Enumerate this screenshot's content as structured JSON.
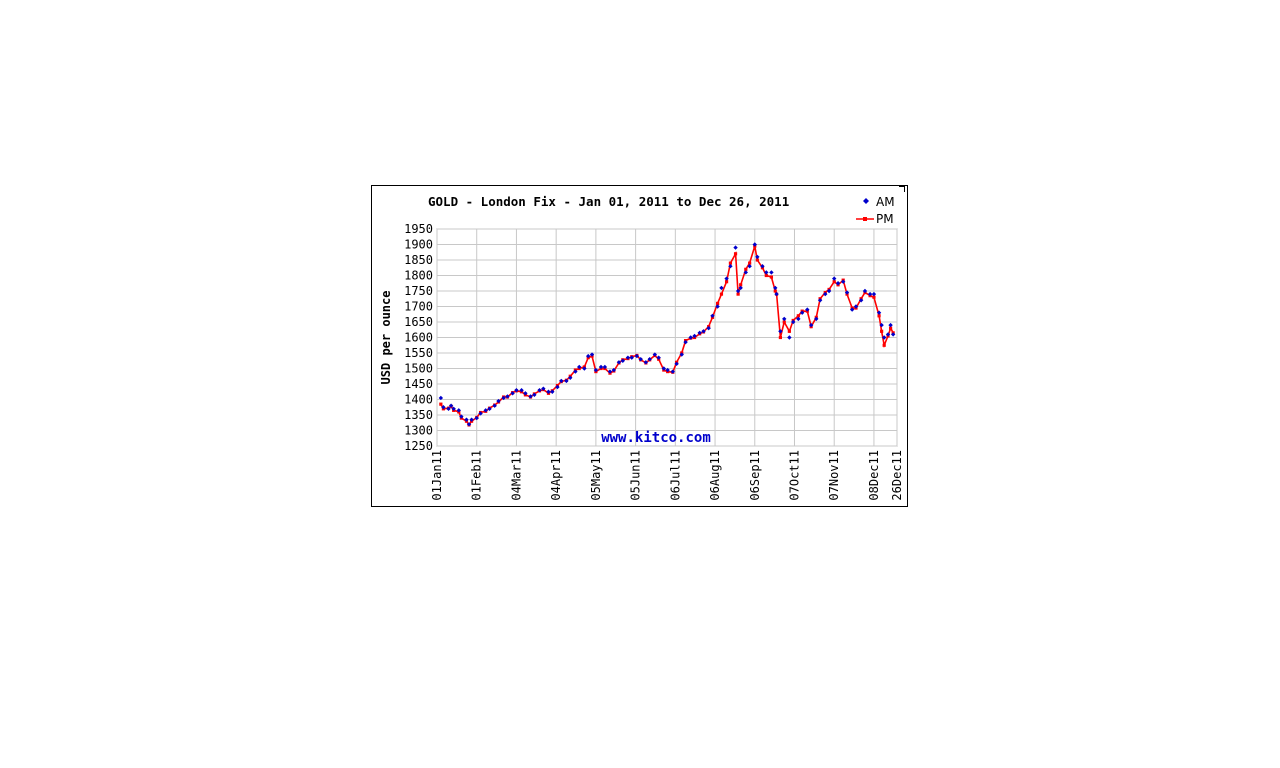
{
  "chart_data": {
    "type": "line",
    "title": "GOLD - London Fix - Jan 01, 2011 to Dec 26, 2011",
    "xlabel": "",
    "ylabel": "USD per ounce",
    "watermark": "www.kitco.com",
    "x_range": [
      "2011-01-01",
      "2011-12-26"
    ],
    "ylim": [
      1250,
      1950
    ],
    "y_ticks": [
      1250,
      1300,
      1350,
      1400,
      1450,
      1500,
      1550,
      1600,
      1650,
      1700,
      1750,
      1800,
      1850,
      1900,
      1950
    ],
    "x_tick_labels": [
      {
        "date": "2011-01-01",
        "label": "01Jan11"
      },
      {
        "date": "2011-02-01",
        "label": "01Feb11"
      },
      {
        "date": "2011-03-04",
        "label": "04Mar11"
      },
      {
        "date": "2011-04-04",
        "label": "04Apr11"
      },
      {
        "date": "2011-05-05",
        "label": "05May11"
      },
      {
        "date": "2011-06-05",
        "label": "05Jun11"
      },
      {
        "date": "2011-07-06",
        "label": "06Jul11"
      },
      {
        "date": "2011-08-06",
        "label": "06Aug11"
      },
      {
        "date": "2011-09-06",
        "label": "06Sep11"
      },
      {
        "date": "2011-10-07",
        "label": "07Oct11"
      },
      {
        "date": "2011-11-07",
        "label": "07Nov11"
      },
      {
        "date": "2011-12-08",
        "label": "08Dec11"
      },
      {
        "date": "2011-12-26",
        "label": "26Dec11"
      }
    ],
    "grid": true,
    "legend_position": "top-right",
    "series": [
      {
        "name": "AM",
        "color": "#0000cc",
        "marker": "diamond",
        "x": [
          "2011-01-04",
          "2011-01-06",
          "2011-01-10",
          "2011-01-12",
          "2011-01-14",
          "2011-01-18",
          "2011-01-20",
          "2011-01-24",
          "2011-01-26",
          "2011-01-28",
          "2011-02-01",
          "2011-02-04",
          "2011-02-08",
          "2011-02-11",
          "2011-02-15",
          "2011-02-18",
          "2011-02-22",
          "2011-02-25",
          "2011-03-01",
          "2011-03-04",
          "2011-03-08",
          "2011-03-11",
          "2011-03-15",
          "2011-03-18",
          "2011-03-22",
          "2011-03-25",
          "2011-03-29",
          "2011-04-01",
          "2011-04-05",
          "2011-04-08",
          "2011-04-12",
          "2011-04-15",
          "2011-04-19",
          "2011-04-22",
          "2011-04-26",
          "2011-04-29",
          "2011-05-02",
          "2011-05-05",
          "2011-05-09",
          "2011-05-12",
          "2011-05-16",
          "2011-05-19",
          "2011-05-23",
          "2011-05-26",
          "2011-05-30",
          "2011-06-02",
          "2011-06-06",
          "2011-06-09",
          "2011-06-13",
          "2011-06-16",
          "2011-06-20",
          "2011-06-23",
          "2011-06-27",
          "2011-06-30",
          "2011-07-04",
          "2011-07-07",
          "2011-07-11",
          "2011-07-14",
          "2011-07-18",
          "2011-07-21",
          "2011-07-25",
          "2011-07-28",
          "2011-08-01",
          "2011-08-04",
          "2011-08-08",
          "2011-08-11",
          "2011-08-15",
          "2011-08-18",
          "2011-08-22",
          "2011-08-24",
          "2011-08-26",
          "2011-08-30",
          "2011-09-02",
          "2011-09-06",
          "2011-09-08",
          "2011-09-12",
          "2011-09-15",
          "2011-09-19",
          "2011-09-22",
          "2011-09-23",
          "2011-09-26",
          "2011-09-29",
          "2011-10-03",
          "2011-10-06",
          "2011-10-10",
          "2011-10-13",
          "2011-10-17",
          "2011-10-20",
          "2011-10-24",
          "2011-10-27",
          "2011-10-31",
          "2011-11-03",
          "2011-11-07",
          "2011-11-10",
          "2011-11-14",
          "2011-11-17",
          "2011-11-21",
          "2011-11-24",
          "2011-11-28",
          "2011-12-01",
          "2011-12-05",
          "2011-12-08",
          "2011-12-12",
          "2011-12-14",
          "2011-12-16",
          "2011-12-19",
          "2011-12-21",
          "2011-12-23"
        ],
        "values": [
          1405,
          1375,
          1370,
          1380,
          1370,
          1365,
          1345,
          1335,
          1320,
          1335,
          1340,
          1355,
          1365,
          1370,
          1380,
          1395,
          1405,
          1410,
          1420,
          1430,
          1430,
          1420,
          1410,
          1415,
          1430,
          1435,
          1425,
          1425,
          1440,
          1460,
          1460,
          1470,
          1490,
          1505,
          1500,
          1540,
          1545,
          1495,
          1505,
          1505,
          1490,
          1495,
          1520,
          1525,
          1535,
          1535,
          1540,
          1530,
          1520,
          1530,
          1545,
          1535,
          1500,
          1495,
          1490,
          1515,
          1545,
          1585,
          1600,
          1605,
          1615,
          1620,
          1630,
          1670,
          1700,
          1760,
          1790,
          1830,
          1890,
          1750,
          1760,
          1810,
          1830,
          1900,
          1860,
          1830,
          1810,
          1810,
          1760,
          1740,
          1620,
          1660,
          1600,
          1650,
          1660,
          1680,
          1690,
          1640,
          1660,
          1720,
          1740,
          1750,
          1790,
          1775,
          1780,
          1745,
          1690,
          1700,
          1720,
          1750,
          1740,
          1740,
          1680,
          1640,
          1600,
          1610,
          1640,
          1610
        ]
      },
      {
        "name": "PM",
        "color": "#ff0000",
        "marker": "square",
        "x": [
          "2011-01-04",
          "2011-01-06",
          "2011-01-10",
          "2011-01-12",
          "2011-01-14",
          "2011-01-18",
          "2011-01-20",
          "2011-01-24",
          "2011-01-26",
          "2011-01-28",
          "2011-02-01",
          "2011-02-04",
          "2011-02-08",
          "2011-02-11",
          "2011-02-15",
          "2011-02-18",
          "2011-02-22",
          "2011-02-25",
          "2011-03-01",
          "2011-03-04",
          "2011-03-08",
          "2011-03-11",
          "2011-03-15",
          "2011-03-18",
          "2011-03-22",
          "2011-03-25",
          "2011-03-29",
          "2011-04-01",
          "2011-04-05",
          "2011-04-08",
          "2011-04-12",
          "2011-04-15",
          "2011-04-19",
          "2011-04-22",
          "2011-04-26",
          "2011-04-29",
          "2011-05-02",
          "2011-05-05",
          "2011-05-09",
          "2011-05-12",
          "2011-05-16",
          "2011-05-19",
          "2011-05-23",
          "2011-05-26",
          "2011-05-30",
          "2011-06-02",
          "2011-06-06",
          "2011-06-09",
          "2011-06-13",
          "2011-06-16",
          "2011-06-20",
          "2011-06-23",
          "2011-06-27",
          "2011-06-30",
          "2011-07-04",
          "2011-07-07",
          "2011-07-11",
          "2011-07-14",
          "2011-07-18",
          "2011-07-21",
          "2011-07-25",
          "2011-07-28",
          "2011-08-01",
          "2011-08-04",
          "2011-08-08",
          "2011-08-11",
          "2011-08-15",
          "2011-08-18",
          "2011-08-22",
          "2011-08-24",
          "2011-08-26",
          "2011-08-30",
          "2011-09-02",
          "2011-09-06",
          "2011-09-08",
          "2011-09-12",
          "2011-09-15",
          "2011-09-19",
          "2011-09-22",
          "2011-09-23",
          "2011-09-26",
          "2011-09-29",
          "2011-10-03",
          "2011-10-06",
          "2011-10-10",
          "2011-10-13",
          "2011-10-17",
          "2011-10-20",
          "2011-10-24",
          "2011-10-27",
          "2011-10-31",
          "2011-11-03",
          "2011-11-07",
          "2011-11-10",
          "2011-11-14",
          "2011-11-17",
          "2011-11-21",
          "2011-11-24",
          "2011-11-28",
          "2011-12-01",
          "2011-12-05",
          "2011-12-08",
          "2011-12-12",
          "2011-12-14",
          "2011-12-16",
          "2011-12-19",
          "2011-12-21",
          "2011-12-23"
        ],
        "values": [
          1385,
          1370,
          1372,
          1378,
          1365,
          1360,
          1340,
          1330,
          1318,
          1330,
          1342,
          1358,
          1362,
          1372,
          1382,
          1392,
          1408,
          1408,
          1422,
          1428,
          1425,
          1415,
          1408,
          1418,
          1428,
          1432,
          1420,
          1428,
          1445,
          1458,
          1462,
          1475,
          1495,
          1500,
          1505,
          1535,
          1540,
          1490,
          1500,
          1500,
          1485,
          1492,
          1518,
          1528,
          1532,
          1538,
          1542,
          1528,
          1518,
          1528,
          1542,
          1530,
          1495,
          1490,
          1488,
          1520,
          1550,
          1590,
          1598,
          1600,
          1612,
          1618,
          1635,
          1665,
          1710,
          1740,
          1780,
          1840,
          1870,
          1740,
          1770,
          1820,
          1840,
          1895,
          1850,
          1825,
          1800,
          1795,
          1750,
          1740,
          1600,
          1650,
          1620,
          1655,
          1670,
          1685,
          1685,
          1635,
          1665,
          1725,
          1745,
          1755,
          1780,
          1770,
          1785,
          1740,
          1695,
          1695,
          1725,
          1745,
          1735,
          1730,
          1670,
          1620,
          1575,
          1605,
          1630,
          1615
        ]
      }
    ]
  }
}
